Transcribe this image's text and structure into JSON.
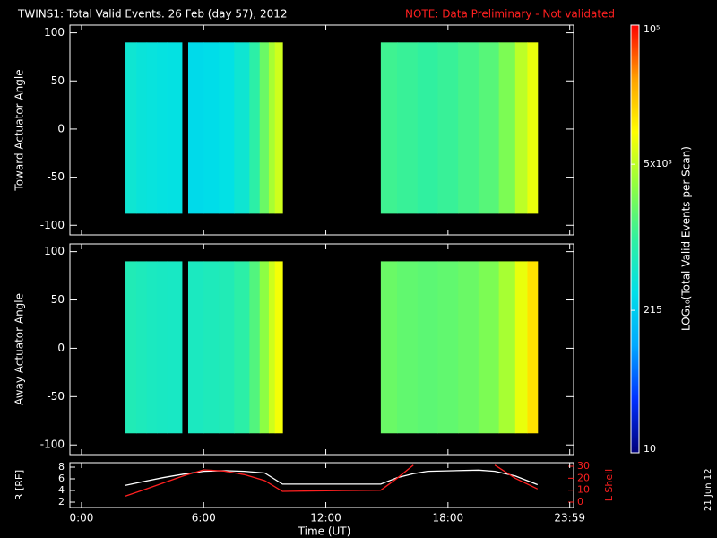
{
  "title": "TWINS1: Total Valid Events. 26 Feb (day  57), 2012",
  "note": "NOTE: Data Preliminary - Not validated",
  "date": "21 Jun 12",
  "xlabel": "Time (UT)",
  "xlim": [
    -0.57,
    24.17
  ],
  "xticks": [
    {
      "value": 0,
      "label": "0:00"
    },
    {
      "value": 6,
      "label": "6:00"
    },
    {
      "value": 12,
      "label": "12:00"
    },
    {
      "value": 18,
      "label": "18:00"
    },
    {
      "value": 23.98,
      "label": "23:59"
    }
  ],
  "colorbar": {
    "label": "LOG₁₀(Total Valid Events per Scan)",
    "scale": "log",
    "lim": [
      10,
      100000
    ],
    "ticks": [
      10,
      215,
      {
        "value": 5000,
        "label": "5x10³"
      },
      {
        "value": 100000,
        "label": "10⁵"
      }
    ],
    "colormap": [
      "#00007a",
      "#0030ff",
      "#00a8ff",
      "#00e0e8",
      "#30f0a0",
      "#90ff40",
      "#ffff00",
      "#ffa000",
      "#ff0000"
    ]
  },
  "chart_data": [
    {
      "type": "heatmap",
      "ylabel": "Toward Actuator Angle",
      "ylim": [
        -110,
        108
      ],
      "yticks": [
        100,
        50,
        0,
        -50,
        -100
      ],
      "angle_range": [
        -88,
        90
      ],
      "blocks": [
        {
          "bins": [
            2.16,
            2.7,
            3.2,
            3.7,
            4.2,
            4.93
          ],
          "values": [
            450,
            400,
            380,
            360,
            350
          ]
        },
        {
          "bins": [
            5.24,
            6,
            6.75,
            7.5,
            8.25,
            8.75,
            9.2,
            9.5,
            9.87
          ],
          "values": [
            280,
            300,
            330,
            450,
            900,
            2000,
            4000,
            6000
          ]
        },
        {
          "bins": [
            14.7,
            15.5,
            16.5,
            17.5,
            18.5,
            19.5,
            20.5,
            21.3,
            21.9,
            22.4
          ],
          "values": [
            1200,
            1100,
            1000,
            1100,
            1300,
            1600,
            2500,
            5000,
            8000
          ]
        }
      ]
    },
    {
      "type": "heatmap",
      "ylabel": "Away Actuator Angle",
      "ylim": [
        -110,
        108
      ],
      "yticks": [
        100,
        50,
        0,
        -50,
        -100
      ],
      "angle_range": [
        -88,
        90
      ],
      "blocks": [
        {
          "bins": [
            2.16,
            2.7,
            3.2,
            3.7,
            4.2,
            4.93
          ],
          "values": [
            700,
            650,
            600,
            580,
            560
          ]
        },
        {
          "bins": [
            5.24,
            6,
            6.75,
            7.5,
            8.25,
            8.75,
            9.2,
            9.5,
            9.87
          ],
          "values": [
            600,
            650,
            700,
            900,
            1500,
            3000,
            6000,
            9000
          ]
        },
        {
          "bins": [
            14.7,
            15.5,
            16.5,
            17.5,
            18.5,
            19.5,
            20.5,
            21.3,
            21.9,
            22.4
          ],
          "values": [
            2000,
            1800,
            1700,
            1800,
            2000,
            2500,
            4000,
            8000,
            14000
          ]
        }
      ]
    },
    {
      "type": "line",
      "ylabel": "R [RE]",
      "ylim": [
        1.08,
        8.77
      ],
      "yticks": [
        2,
        4,
        6,
        8
      ],
      "y2label": "L Shell",
      "y2lim": [
        -4.5,
        33
      ],
      "y2ticks": [
        0,
        10,
        20,
        30
      ],
      "x": [
        2.16,
        3,
        4,
        5,
        6,
        7,
        8,
        9,
        9.87,
        12,
        14.7,
        15.5,
        16.3,
        17,
        19.5,
        20.3,
        21.3,
        22.4
      ],
      "series": [
        {
          "color": "#ffffff",
          "values": [
            4.9,
            5.5,
            6.2,
            6.8,
            7.3,
            7.4,
            7.3,
            7.0,
            5.1,
            5.1,
            5.1,
            6.2,
            6.9,
            7.3,
            7.5,
            7.3,
            6.5,
            5.0
          ]
        },
        {
          "color": "#ff2020",
          "axis": "y2",
          "values": [
            5,
            10,
            16,
            22,
            27,
            26,
            23,
            18,
            9,
            9.5,
            10,
            20,
            31,
            null,
            null,
            31,
            20,
            11
          ]
        }
      ]
    }
  ]
}
